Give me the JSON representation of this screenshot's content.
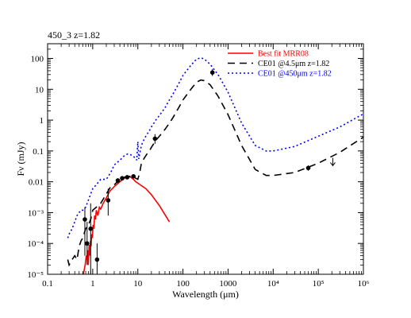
{
  "chart_data": {
    "type": "line",
    "title": "450_3 z=1.82",
    "xlabel": "Wavelength (μm)",
    "ylabel": "Fν (mJy)",
    "x_scale": "log",
    "y_scale": "log",
    "xlim": [
      0.1,
      1000000
    ],
    "ylim": [
      1e-05,
      300
    ],
    "grid": false,
    "legend_position": "top-right",
    "x_ticks": [
      {
        "value": 0.1,
        "label": "0.1"
      },
      {
        "value": 1,
        "label": "1"
      },
      {
        "value": 10,
        "label": "10"
      },
      {
        "value": 100,
        "label": "100"
      },
      {
        "value": 1000,
        "label": "1000"
      },
      {
        "value": 10000,
        "label": "10⁴"
      },
      {
        "value": 100000,
        "label": "10⁵"
      },
      {
        "value": 1000000,
        "label": "10⁶"
      }
    ],
    "y_ticks": [
      {
        "value": 100,
        "label": "100"
      },
      {
        "value": 10,
        "label": "10"
      },
      {
        "value": 1,
        "label": "1"
      },
      {
        "value": 0.1,
        "label": "0.1"
      },
      {
        "value": 0.01,
        "label": "0.01"
      },
      {
        "value": 0.001,
        "label": "10⁻³"
      },
      {
        "value": 0.0001,
        "label": "10⁻⁴"
      },
      {
        "value": 1e-05,
        "label": "10⁻⁵"
      }
    ],
    "series": [
      {
        "name": "Best fit MRR08",
        "color": "#ff0000",
        "dash": "solid",
        "x": [
          0.62,
          0.68,
          0.72,
          0.75,
          0.78,
          0.8,
          0.83,
          0.86,
          0.89,
          0.92,
          0.95,
          0.98,
          1.02,
          1.06,
          1.1,
          1.15,
          1.2,
          1.3,
          1.4,
          1.5,
          1.7,
          2.0,
          2.4,
          3.0,
          4.0,
          5.0,
          6.0,
          7.0,
          8.0,
          9.0,
          10,
          12,
          15,
          20,
          30,
          50
        ],
        "y": [
          1e-05,
          2e-05,
          4e-05,
          3e-05,
          6e-05,
          2e-05,
          9e-05,
          4e-05,
          0.00012,
          8e-05,
          0.0002,
          0.00015,
          0.0004,
          0.0003,
          0.0008,
          0.0006,
          0.0012,
          0.0008,
          0.0015,
          0.0013,
          0.002,
          0.003,
          0.005,
          0.007,
          0.01,
          0.013,
          0.015,
          0.014,
          0.012,
          0.01,
          0.009,
          0.0075,
          0.006,
          0.0038,
          0.0017,
          0.0005
        ]
      },
      {
        "name": "CE01 @4.5μm z=1.82",
        "color": "#000000",
        "dash": "9,6",
        "x": [
          0.28,
          0.3,
          0.35,
          0.4,
          0.45,
          0.5,
          0.55,
          0.6,
          0.7,
          0.8,
          0.9,
          1.0,
          1.2,
          1.5,
          2.0,
          2.5,
          3.0,
          4.0,
          5.0,
          6.0,
          7.0,
          8.0,
          9.0,
          10,
          11,
          12,
          14,
          16,
          18,
          20,
          25,
          30,
          40,
          50,
          60,
          80,
          100,
          150,
          200,
          250,
          300,
          400,
          600,
          1000,
          2000,
          4000,
          7000,
          10000,
          30000,
          100000,
          300000,
          1000000
        ],
        "y": [
          3e-05,
          2e-05,
          3e-05,
          4e-05,
          3e-05,
          8e-05,
          0.00012,
          0.00015,
          0.0003,
          0.0004,
          0.0006,
          0.0012,
          0.0015,
          0.002,
          0.004,
          0.007,
          0.008,
          0.012,
          0.014,
          0.015,
          0.015,
          0.014,
          0.013,
          0.012,
          0.02,
          0.04,
          0.06,
          0.08,
          0.1,
          0.13,
          0.22,
          0.3,
          0.5,
          0.8,
          1.2,
          2.5,
          4.5,
          10,
          17,
          20,
          19,
          14,
          6,
          1.5,
          0.15,
          0.025,
          0.016,
          0.016,
          0.02,
          0.04,
          0.09,
          0.28
        ]
      },
      {
        "name": "CE01 @450μm z=1.82",
        "color": "#0000ff",
        "dash": "2,3",
        "x": [
          0.28,
          0.3,
          0.35,
          0.4,
          0.45,
          0.5,
          0.55,
          0.6,
          0.7,
          0.8,
          0.9,
          1.0,
          1.2,
          1.5,
          2.0,
          2.5,
          3.0,
          4.0,
          5.0,
          6.0,
          7.0,
          8.0,
          9.0,
          9.5,
          10,
          10.5,
          11,
          12,
          14,
          16,
          18,
          20,
          25,
          30,
          40,
          50,
          60,
          80,
          100,
          150,
          200,
          250,
          300,
          400,
          600,
          1000,
          2000,
          4000,
          7000,
          10000,
          30000,
          100000,
          300000,
          1000000
        ],
        "y": [
          0.00015,
          0.0002,
          0.0003,
          0.0005,
          0.0008,
          0.001,
          0.0012,
          0.0012,
          0.0015,
          0.0025,
          0.004,
          0.006,
          0.008,
          0.012,
          0.012,
          0.02,
          0.035,
          0.05,
          0.07,
          0.08,
          0.075,
          0.065,
          0.06,
          0.05,
          0.2,
          0.055,
          0.08,
          0.15,
          0.25,
          0.35,
          0.45,
          0.6,
          1.0,
          1.4,
          2.5,
          4.5,
          7,
          15,
          28,
          60,
          95,
          105,
          95,
          65,
          30,
          8,
          0.8,
          0.15,
          0.1,
          0.1,
          0.14,
          0.3,
          0.6,
          1.6
        ]
      }
    ],
    "points": [
      {
        "x": 0.67,
        "y": 0.0006,
        "ylo": 4e-05,
        "yhi": 0.0015,
        "upper_limit": false
      },
      {
        "x": 0.75,
        "y": 0.0001,
        "ylo": 2e-05,
        "yhi": 0.0005,
        "upper_limit": false
      },
      {
        "x": 0.9,
        "y": 0.0003,
        "ylo": 1e-05,
        "yhi": 0.002,
        "upper_limit": false
      },
      {
        "x": 1.25,
        "y": 3e-05,
        "ylo": 1e-05,
        "yhi": 0.0001,
        "upper_limit": false
      },
      {
        "x": 2.2,
        "y": 0.0025,
        "ylo": 0.0008,
        "yhi": 0.006,
        "upper_limit": false
      },
      {
        "x": 3.6,
        "y": 0.011,
        "ylo": 0.009,
        "yhi": 0.013,
        "upper_limit": false
      },
      {
        "x": 4.5,
        "y": 0.013,
        "ylo": 0.011,
        "yhi": 0.015,
        "upper_limit": false
      },
      {
        "x": 5.8,
        "y": 0.014,
        "ylo": 0.012,
        "yhi": 0.016,
        "upper_limit": false
      },
      {
        "x": 8.0,
        "y": 0.015,
        "ylo": 0.013,
        "yhi": 0.017,
        "upper_limit": false
      },
      {
        "x": 24,
        "y": 0.25,
        "ylo": 0.17,
        "yhi": 0.35,
        "upper_limit": false
      },
      {
        "x": 450,
        "y": 35,
        "ylo": 27,
        "yhi": 45,
        "upper_limit": false
      },
      {
        "x": 60000,
        "y": 0.028,
        "ylo": 0.023,
        "yhi": 0.034,
        "upper_limit": false
      },
      {
        "x": 210000,
        "y": 0.06,
        "ylo": null,
        "yhi": null,
        "upper_limit": true
      }
    ]
  }
}
